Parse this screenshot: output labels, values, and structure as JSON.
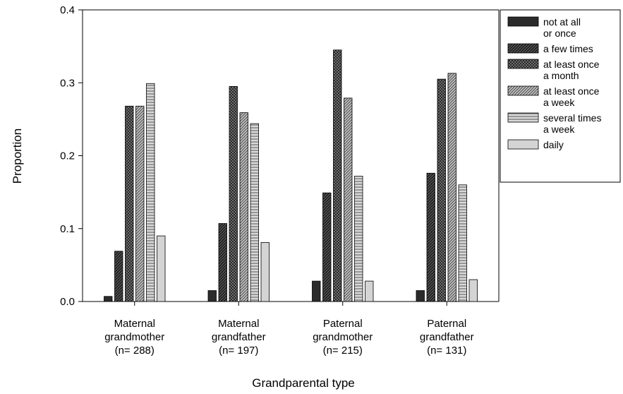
{
  "chart_data": {
    "type": "bar",
    "title": "",
    "xlabel": "Grandparental type",
    "ylabel": "Proportion",
    "ylim": [
      0,
      0.4
    ],
    "yticks": [
      "0.0",
      "0.1",
      "0.2",
      "0.3",
      "0.4"
    ],
    "grid": false,
    "legend_position": "right",
    "categories": [
      [
        "Maternal",
        "grandmother",
        "(n= 288)"
      ],
      [
        "Maternal",
        "grandfather",
        "(n= 197)"
      ],
      [
        "Paternal",
        "grandmother",
        "(n= 215)"
      ],
      [
        "Paternal",
        "grandfather",
        "(n= 131)"
      ]
    ],
    "series": [
      {
        "name": [
          "not at all",
          "or once"
        ],
        "pattern": "solid-dark",
        "values": [
          0.007,
          0.015,
          0.028,
          0.015
        ]
      },
      {
        "name": [
          "a few times"
        ],
        "pattern": "diagonal-dark",
        "values": [
          0.069,
          0.107,
          0.149,
          0.176
        ]
      },
      {
        "name": [
          "at least once",
          "a month"
        ],
        "pattern": "crosshatch",
        "values": [
          0.268,
          0.295,
          0.345,
          0.305
        ]
      },
      {
        "name": [
          "at least once",
          "a week"
        ],
        "pattern": "diagonal-grey",
        "values": [
          0.268,
          0.259,
          0.279,
          0.313
        ]
      },
      {
        "name": [
          "several times",
          "a week"
        ],
        "pattern": "horizontal",
        "values": [
          0.299,
          0.244,
          0.172,
          0.16
        ]
      },
      {
        "name": [
          "daily"
        ],
        "pattern": "solid-light",
        "values": [
          0.09,
          0.081,
          0.028,
          0.03
        ]
      }
    ]
  }
}
